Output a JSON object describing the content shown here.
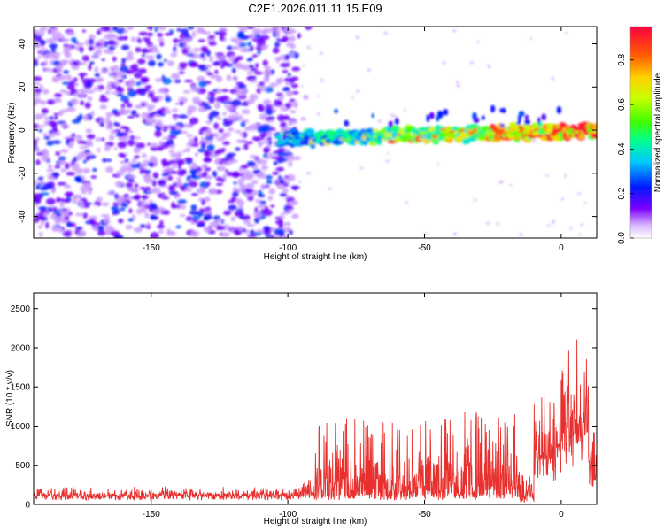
{
  "title": "C2E1.2026.011.11.15.E09",
  "chart_data": [
    {
      "type": "heatmap",
      "name": "spectrogram",
      "xlabel": "Height of straight line (km)",
      "ylabel": "Frequency (Hz)",
      "xlim": [
        -193,
        13
      ],
      "ylim": [
        -50,
        48
      ],
      "xticks": [
        -150,
        -100,
        -50,
        0
      ],
      "yticks": [
        -40,
        -20,
        0,
        20,
        40
      ],
      "colorbar": {
        "label": "Normalized spectral amplitude",
        "range": [
          0,
          0.95
        ],
        "ticks": [
          0.0,
          0.2,
          0.4,
          0.6,
          0.8
        ]
      },
      "noise_region": {
        "x_from": -193,
        "x_to": -97,
        "typical_amplitude": 0.25
      },
      "signal_band": {
        "x_from": -103,
        "x_to": 13,
        "center_frequency_start": -4,
        "center_frequency_end": 0,
        "half_width": 3,
        "amplitude_start": 0.3,
        "amplitude_end": 0.9
      }
    },
    {
      "type": "line",
      "name": "snr",
      "xlabel": "Height of straight line (km)",
      "ylabel": "SNR (10 * v/v)",
      "xlim": [
        -193,
        13
      ],
      "ylim": [
        0,
        2700
      ],
      "xticks": [
        -150,
        -100,
        -50,
        0
      ],
      "yticks": [
        0,
        500,
        1000,
        1500,
        2000,
        2500
      ],
      "color": "#e8302e",
      "segments": [
        {
          "x_from": -193,
          "x_to": -95,
          "baseline": 130,
          "jitter": 110
        },
        {
          "x_from": -95,
          "x_to": -90,
          "baseline": 150,
          "jitter": 350
        },
        {
          "x_from": -90,
          "x_to": -50,
          "baseline": 120,
          "jitter": 1000
        },
        {
          "x_from": -50,
          "x_to": -15,
          "baseline": 130,
          "jitter": 1100
        },
        {
          "x_from": -15,
          "x_to": -10,
          "baseline": 50,
          "jitter": 400
        },
        {
          "x_from": -10,
          "x_to": 0,
          "baseline": 700,
          "jitter": 900
        },
        {
          "x_from": 0,
          "x_to": 10,
          "baseline": 1100,
          "jitter": 1400
        },
        {
          "x_from": 10,
          "x_to": 13,
          "baseline": 500,
          "jitter": 800
        }
      ]
    }
  ]
}
